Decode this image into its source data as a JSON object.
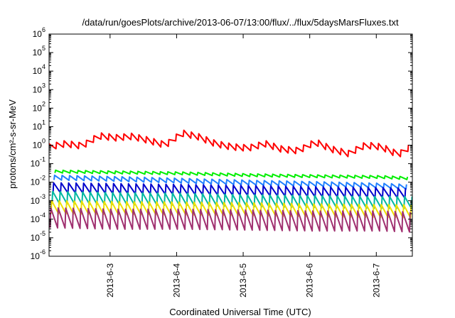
{
  "chart_data": {
    "type": "line",
    "title": "/data/run/goesPlots/archive/2013-06-07/13:00/flux/../flux/5daysMarsFluxes.txt",
    "xlabel": "Coordinated Universal Time (UTC)",
    "ylabel": "protons/cm²-s-sr-MeV",
    "yscale": "log",
    "ylim": [
      1e-06,
      1000000
    ],
    "yticks": [
      {
        "exp": -6,
        "label": "10",
        "sup": "-6"
      },
      {
        "exp": -5,
        "label": "10",
        "sup": "-5"
      },
      {
        "exp": -4,
        "label": "10",
        "sup": "-4"
      },
      {
        "exp": -3,
        "label": "10",
        "sup": "-3"
      },
      {
        "exp": -2,
        "label": "10",
        "sup": "-2"
      },
      {
        "exp": -1,
        "label": "10",
        "sup": "-1"
      },
      {
        "exp": 0,
        "label": "10",
        "sup": "0"
      },
      {
        "exp": 1,
        "label": "10",
        "sup": "1"
      },
      {
        "exp": 2,
        "label": "10",
        "sup": "2"
      },
      {
        "exp": 3,
        "label": "10",
        "sup": "3"
      },
      {
        "exp": 4,
        "label": "10",
        "sup": "4"
      },
      {
        "exp": 5,
        "label": "10",
        "sup": "5"
      },
      {
        "exp": 6,
        "label": "10",
        "sup": "6"
      }
    ],
    "xlim": [
      "2013-06-02T02:00",
      "2013-06-07T13:00"
    ],
    "xticks": [
      {
        "t": "2013-06-03T00:00",
        "label": "2013-6-3"
      },
      {
        "t": "2013-06-04T00:00",
        "label": "2013-6-4"
      },
      {
        "t": "2013-06-05T00:00",
        "label": "2013-6-5"
      },
      {
        "t": "2013-06-06T00:00",
        "label": "2013-6-6"
      },
      {
        "t": "2013-06-07T00:00",
        "label": "2013-6-7"
      }
    ],
    "grid": false,
    "legend": "none",
    "sawtooth_period_hours": 2.7,
    "series": [
      {
        "color": "#ff0000",
        "x": [
          "2013-06-02T02:00",
          "2013-06-02T08:00",
          "2013-06-02T14:00",
          "2013-06-02T20:00",
          "2013-06-03T02:00",
          "2013-06-03T08:00",
          "2013-06-03T14:00",
          "2013-06-03T20:00",
          "2013-06-04T02:00",
          "2013-06-04T08:00",
          "2013-06-04T14:00",
          "2013-06-04T20:00",
          "2013-06-05T02:00",
          "2013-06-05T08:00",
          "2013-06-05T14:00",
          "2013-06-05T20:00",
          "2013-06-06T02:00",
          "2013-06-06T08:00",
          "2013-06-06T14:00",
          "2013-06-06T20:00",
          "2013-06-07T02:00",
          "2013-06-07T08:00",
          "2013-06-07T13:00"
        ],
        "values": [
          0.8,
          1.2,
          0.9,
          3.2,
          2.5,
          3.0,
          1.8,
          1.0,
          4.5,
          2.8,
          1.2,
          0.8,
          0.7,
          1.2,
          0.6,
          0.5,
          1.5,
          0.6,
          0.35,
          1.0,
          0.8,
          0.3,
          1.0
        ],
        "amplitude": 2.2
      },
      {
        "color": "#00ee00",
        "x": [
          "2013-06-02T02:00",
          "2013-06-03T02:00",
          "2013-06-04T02:00",
          "2013-06-05T02:00",
          "2013-06-06T02:00",
          "2013-06-07T02:00",
          "2013-06-07T13:00"
        ],
        "values": [
          0.038,
          0.034,
          0.03,
          0.024,
          0.021,
          0.019,
          0.016
        ],
        "amplitude": 1.4
      },
      {
        "color": "#2080ff",
        "x": [
          "2013-06-02T02:00",
          "2013-06-03T02:00",
          "2013-06-04T02:00",
          "2013-06-05T02:00",
          "2013-06-06T02:00",
          "2013-06-07T02:00",
          "2013-06-07T13:00"
        ],
        "values": [
          0.018,
          0.015,
          0.012,
          0.0095,
          0.008,
          0.0065,
          0.0055
        ],
        "amplitude": 1.8
      },
      {
        "color": "#0000cc",
        "x": [
          "2013-06-02T02:00",
          "2013-06-03T02:00",
          "2013-06-04T02:00",
          "2013-06-05T02:00",
          "2013-06-06T02:00",
          "2013-06-07T02:00",
          "2013-06-07T13:00"
        ],
        "values": [
          0.005,
          0.0045,
          0.004,
          0.0035,
          0.003,
          0.0027,
          0.0025
        ],
        "amplitude": 3.5
      },
      {
        "color": "#00b8a0",
        "x": [
          "2013-06-02T02:00",
          "2013-06-03T02:00",
          "2013-06-04T02:00",
          "2013-06-05T02:00",
          "2013-06-06T02:00",
          "2013-06-07T02:00",
          "2013-06-07T13:00"
        ],
        "values": [
          0.0015,
          0.0013,
          0.0012,
          0.001,
          0.0009,
          0.0008,
          0.0008
        ],
        "amplitude": 4.5
      },
      {
        "color": "#f0e000",
        "x": [
          "2013-06-02T02:00",
          "2013-06-03T02:00",
          "2013-06-04T02:00",
          "2013-06-05T02:00",
          "2013-06-06T02:00",
          "2013-06-07T02:00",
          "2013-06-07T13:00"
        ],
        "values": [
          0.00045,
          0.0004,
          0.00038,
          0.00035,
          0.0003,
          0.00028,
          0.00027
        ],
        "amplitude": 5
      },
      {
        "color": "#a03070",
        "x": [
          "2013-06-02T02:00",
          "2013-06-03T02:00",
          "2013-06-04T02:00",
          "2013-06-05T02:00",
          "2013-06-06T02:00",
          "2013-06-07T02:00",
          "2013-06-07T13:00"
        ],
        "values": [
          0.00012,
          0.0001,
          0.0001,
          9e-05,
          8e-05,
          8e-05,
          7e-05
        ],
        "amplitude": 12
      }
    ]
  }
}
